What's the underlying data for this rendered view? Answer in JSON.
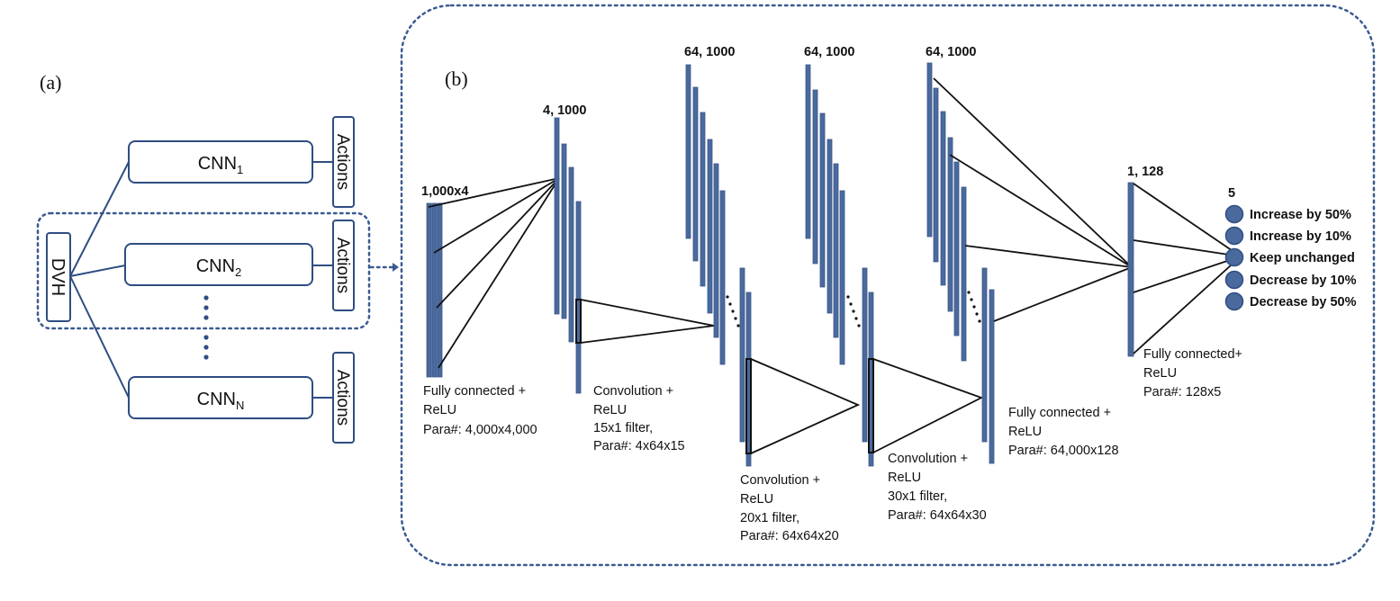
{
  "panel_a": {
    "tag": "(a)",
    "dvh_label": "DVH",
    "cnn_base": "CNN",
    "cnn_subscripts": [
      "1",
      "2",
      "N"
    ],
    "actions_label": "Actions"
  },
  "panel_b": {
    "tag": "(b)",
    "input_dims": "1,000x4",
    "fc1_dims": "4, 1000",
    "conv1_dims": "64, 1000",
    "conv2_dims": "64, 1000",
    "conv3_dims": "64, 1000",
    "fc2_dims": "1, 128",
    "output_dims": "5",
    "layer_fc1": [
      "Fully connected +",
      "ReLU",
      "Para#: 4,000x4,000"
    ],
    "layer_conv1": [
      "Convolution +",
      "ReLU",
      "15x1 filter,",
      "Para#: 4x64x15"
    ],
    "layer_conv2": [
      "Convolution +",
      "ReLU",
      "20x1 filter,",
      "Para#: 64x64x20"
    ],
    "layer_conv3": [
      "Convolution +",
      "ReLU",
      "30x1 filter,",
      "Para#: 64x64x30"
    ],
    "layer_fc2": [
      "Fully connected +",
      "ReLU",
      "Para#: 64,000x128"
    ],
    "layer_fc3": [
      "Fully connected+",
      "ReLU",
      "Para#: 128x5"
    ],
    "outputs": [
      "Increase by 50%",
      "Increase by 10%",
      "Keep unchanged",
      "Decrease by 10%",
      "Decrease by 50%"
    ]
  },
  "colors": {
    "bar_fill": "#4a6a9e",
    "border_blue": "#2e4d82"
  }
}
